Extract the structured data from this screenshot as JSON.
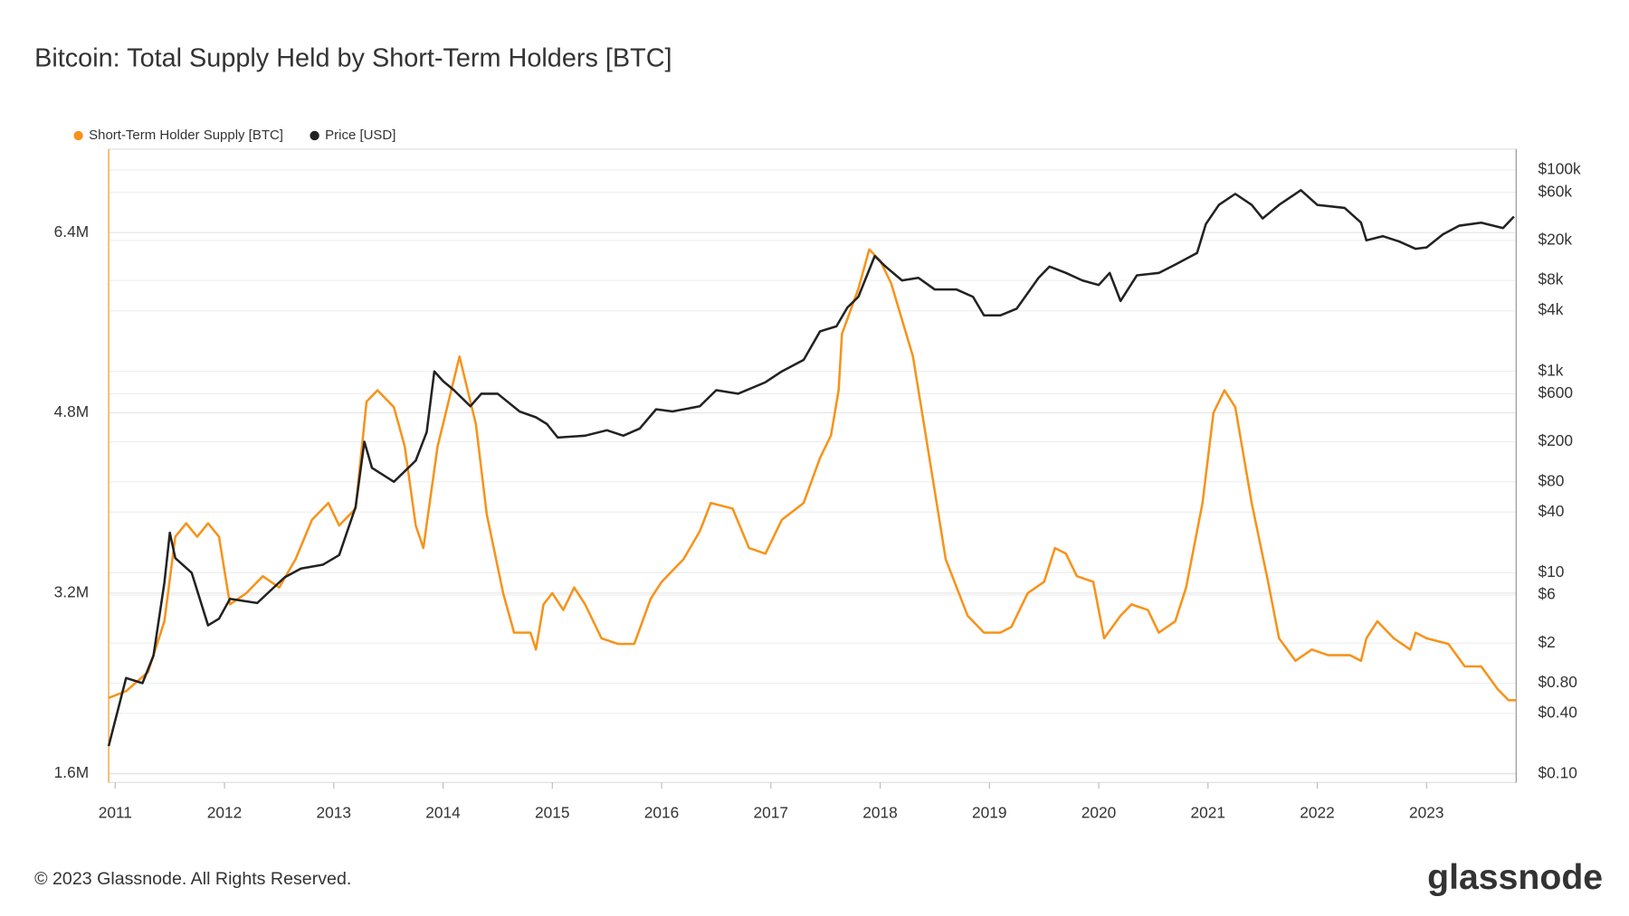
{
  "chart_data": {
    "type": "line",
    "title": "Bitcoin: Total Supply Held by Short-Term Holders [BTC]",
    "footer": "© 2023 Glassnode. All Rights Reserved.",
    "brand": "glassnode",
    "xlim": [
      2010.94,
      2023.82
    ],
    "xticks": [
      2011,
      2012,
      2013,
      2014,
      2015,
      2016,
      2017,
      2018,
      2019,
      2020,
      2021,
      2022,
      2023
    ],
    "ylim": [
      1520000,
      7140000
    ],
    "yticks": [
      {
        "value": 1600000,
        "label": "1.6M"
      },
      {
        "value": 3200000,
        "label": "3.2M"
      },
      {
        "value": 4800000,
        "label": "4.8M"
      },
      {
        "value": 6400000,
        "label": "6.4M"
      }
    ],
    "y2_log": true,
    "y2lim": [
      0.0826,
      161000
    ],
    "y2ticks": [
      {
        "value": 0.1,
        "label": "$0.10"
      },
      {
        "value": 0.4,
        "label": "$0.40"
      },
      {
        "value": 0.8,
        "label": "$0.80"
      },
      {
        "value": 2,
        "label": "$2"
      },
      {
        "value": 6,
        "label": "$6"
      },
      {
        "value": 10,
        "label": "$10"
      },
      {
        "value": 40,
        "label": "$40"
      },
      {
        "value": 80,
        "label": "$80"
      },
      {
        "value": 200,
        "label": "$200"
      },
      {
        "value": 600,
        "label": "$600"
      },
      {
        "value": 1000,
        "label": "$1k"
      },
      {
        "value": 4000,
        "label": "$4k"
      },
      {
        "value": 8000,
        "label": "$8k"
      },
      {
        "value": 20000,
        "label": "$20k"
      },
      {
        "value": 60000,
        "label": "$60k"
      },
      {
        "value": 100000,
        "label": "$100k"
      }
    ],
    "grid": true,
    "legend": "top-left",
    "series": [
      {
        "name": "Short-Term Holder Supply [BTC]",
        "color": "#f7931a",
        "x": [
          2010.94,
          2011.1,
          2011.3,
          2011.45,
          2011.55,
          2011.65,
          2011.75,
          2011.85,
          2011.95,
          2012.0,
          2012.05,
          2012.2,
          2012.35,
          2012.5,
          2012.65,
          2012.8,
          2012.95,
          2013.05,
          2013.2,
          2013.3,
          2013.4,
          2013.55,
          2013.65,
          2013.75,
          2013.82,
          2013.95,
          2014.05,
          2014.15,
          2014.3,
          2014.4,
          2014.55,
          2014.65,
          2014.8,
          2014.85,
          2014.92,
          2015.0,
          2015.1,
          2015.2,
          2015.3,
          2015.45,
          2015.6,
          2015.75,
          2015.9,
          2016.0,
          2016.2,
          2016.35,
          2016.45,
          2016.65,
          2016.8,
          2016.95,
          2017.1,
          2017.3,
          2017.45,
          2017.55,
          2017.62,
          2017.65,
          2017.8,
          2017.9,
          2018.0,
          2018.1,
          2018.3,
          2018.4,
          2018.6,
          2018.8,
          2018.95,
          2019.1,
          2019.2,
          2019.35,
          2019.5,
          2019.6,
          2019.7,
          2019.8,
          2019.95,
          2020.05,
          2020.2,
          2020.3,
          2020.45,
          2020.55,
          2020.7,
          2020.8,
          2020.95,
          2021.05,
          2021.15,
          2021.25,
          2021.4,
          2021.55,
          2021.65,
          2021.8,
          2021.95,
          2022.1,
          2022.3,
          2022.4,
          2022.45,
          2022.55,
          2022.7,
          2022.85,
          2022.9,
          2023.0,
          2023.2,
          2023.35,
          2023.5,
          2023.65,
          2023.75,
          2023.82
        ],
        "values": [
          2270000,
          2330000,
          2500000,
          2950000,
          3700000,
          3820000,
          3700000,
          3820000,
          3700000,
          3400000,
          3100000,
          3200000,
          3350000,
          3250000,
          3500000,
          3850000,
          4000000,
          3800000,
          3950000,
          4900000,
          5000000,
          4850000,
          4500000,
          3800000,
          3600000,
          4500000,
          4900000,
          5300000,
          4700000,
          3900000,
          3200000,
          2850000,
          2850000,
          2700000,
          3100000,
          3200000,
          3050000,
          3250000,
          3100000,
          2800000,
          2750000,
          2750000,
          3150000,
          3300000,
          3500000,
          3750000,
          4000000,
          3950000,
          3600000,
          3550000,
          3850000,
          4000000,
          4400000,
          4600000,
          5000000,
          5500000,
          5900000,
          6250000,
          6150000,
          5950000,
          5300000,
          4700000,
          3500000,
          3000000,
          2850000,
          2850000,
          2900000,
          3200000,
          3300000,
          3600000,
          3550000,
          3350000,
          3300000,
          2800000,
          3000000,
          3100000,
          3050000,
          2850000,
          2950000,
          3250000,
          4000000,
          4800000,
          5000000,
          4850000,
          4000000,
          3300000,
          2800000,
          2600000,
          2700000,
          2650000,
          2650000,
          2600000,
          2800000,
          2950000,
          2800000,
          2700000,
          2850000,
          2800000,
          2750000,
          2550000,
          2550000,
          2350000,
          2250000,
          2250000
        ]
      },
      {
        "name": "Price [USD]",
        "color": "#222222",
        "axis": "y2",
        "x": [
          2010.94,
          2011.1,
          2011.25,
          2011.35,
          2011.45,
          2011.5,
          2011.55,
          2011.7,
          2011.85,
          2011.95,
          2012.05,
          2012.3,
          2012.55,
          2012.7,
          2012.9,
          2013.05,
          2013.2,
          2013.28,
          2013.35,
          2013.55,
          2013.75,
          2013.85,
          2013.92,
          2014.0,
          2014.1,
          2014.25,
          2014.35,
          2014.5,
          2014.7,
          2014.85,
          2014.95,
          2015.05,
          2015.3,
          2015.5,
          2015.65,
          2015.8,
          2015.95,
          2016.1,
          2016.35,
          2016.5,
          2016.7,
          2016.95,
          2017.1,
          2017.3,
          2017.45,
          2017.6,
          2017.7,
          2017.8,
          2017.95,
          2018.05,
          2018.2,
          2018.35,
          2018.5,
          2018.7,
          2018.85,
          2018.95,
          2019.1,
          2019.25,
          2019.45,
          2019.55,
          2019.7,
          2019.85,
          2020.0,
          2020.1,
          2020.2,
          2020.35,
          2020.55,
          2020.7,
          2020.9,
          2020.98,
          2021.1,
          2021.25,
          2021.4,
          2021.5,
          2021.65,
          2021.85,
          2022.0,
          2022.25,
          2022.4,
          2022.45,
          2022.6,
          2022.75,
          2022.9,
          2023.0,
          2023.15,
          2023.3,
          2023.5,
          2023.7,
          2023.8
        ],
        "values": [
          0.19,
          0.9,
          0.8,
          1.5,
          8,
          25,
          14,
          10,
          3,
          3.5,
          5.5,
          5,
          9,
          11,
          12,
          15,
          45,
          200,
          110,
          80,
          130,
          250,
          1000,
          800,
          650,
          450,
          600,
          600,
          400,
          350,
          300,
          220,
          230,
          260,
          230,
          270,
          420,
          400,
          450,
          650,
          600,
          780,
          1000,
          1300,
          2500,
          2800,
          4300,
          5500,
          14000,
          11000,
          8000,
          8500,
          6500,
          6500,
          5500,
          3600,
          3600,
          4200,
          8500,
          11000,
          9500,
          8000,
          7200,
          9500,
          5000,
          9000,
          9500,
          11500,
          15000,
          29000,
          45000,
          58000,
          45000,
          33000,
          45000,
          63000,
          45000,
          42000,
          30000,
          20000,
          22000,
          19500,
          16500,
          17000,
          23000,
          28000,
          30000,
          26500,
          34500
        ]
      }
    ]
  }
}
